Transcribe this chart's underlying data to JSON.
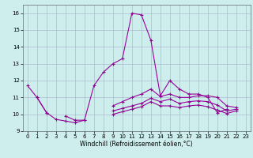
{
  "xlabel": "Windchill (Refroidissement éolien,°C)",
  "background_color": "#ceeeed",
  "grid_color": "#aaaacc",
  "line_color": "#990099",
  "xlim": [
    -0.5,
    23.5
  ],
  "ylim": [
    9.0,
    16.5
  ],
  "xticks": [
    0,
    1,
    2,
    3,
    4,
    5,
    6,
    7,
    8,
    9,
    10,
    11,
    12,
    13,
    14,
    15,
    16,
    17,
    18,
    19,
    20,
    21,
    22,
    23
  ],
  "yticks": [
    9,
    10,
    11,
    12,
    13,
    14,
    15,
    16
  ],
  "s1": [
    11.7,
    11.0,
    10.1,
    9.7,
    9.6,
    9.5,
    9.65,
    11.7,
    12.5,
    13.0,
    13.3,
    16.0,
    15.9,
    14.4,
    11.1,
    12.0,
    11.5,
    11.2,
    11.2,
    11.0,
    10.1,
    10.3,
    null,
    null
  ],
  "s2": [
    null,
    11.0,
    10.1,
    null,
    9.9,
    9.65,
    9.65,
    null,
    null,
    10.5,
    10.75,
    11.0,
    11.2,
    11.5,
    11.05,
    11.2,
    11.0,
    11.0,
    11.1,
    11.1,
    11.0,
    10.5,
    10.4,
    null
  ],
  "s3": [
    null,
    null,
    null,
    null,
    null,
    null,
    null,
    null,
    null,
    10.2,
    10.35,
    10.5,
    10.65,
    10.95,
    10.75,
    10.9,
    10.65,
    10.75,
    10.8,
    10.75,
    10.55,
    10.2,
    10.3,
    null
  ],
  "s4": [
    null,
    null,
    null,
    null,
    null,
    null,
    null,
    null,
    null,
    10.0,
    10.15,
    10.3,
    10.45,
    10.75,
    10.5,
    10.5,
    10.4,
    10.5,
    10.55,
    10.45,
    10.25,
    10.05,
    10.2,
    null
  ]
}
